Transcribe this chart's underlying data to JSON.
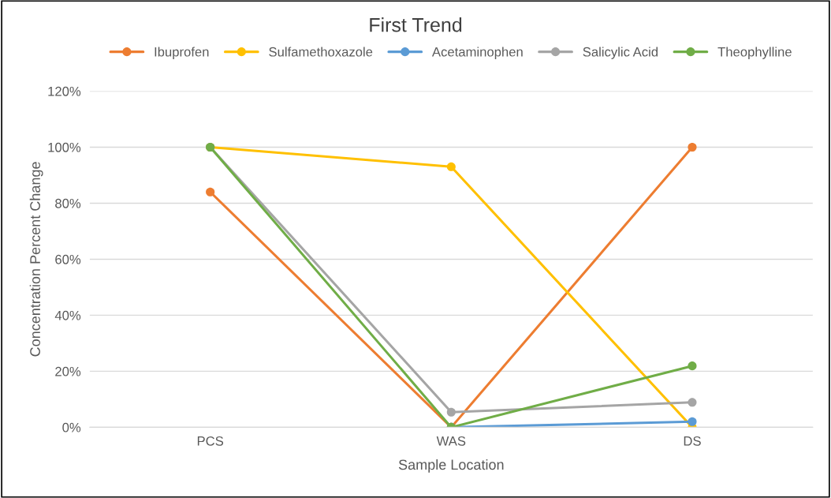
{
  "chart_data": {
    "type": "line",
    "title": "First Trend",
    "xlabel": "Sample Location",
    "ylabel": "Concentration Percent Change",
    "categories": [
      "PCS",
      "WAS",
      "DS"
    ],
    "series": [
      {
        "name": "Ibuprofen",
        "color": "#ed7d31",
        "values": [
          84,
          0,
          100
        ]
      },
      {
        "name": "Sulfamethoxazole",
        "color": "#ffc000",
        "values": [
          100,
          93,
          0
        ]
      },
      {
        "name": "Acetaminophen",
        "color": "#5b9bd5",
        "values": [
          null,
          0,
          2
        ]
      },
      {
        "name": "Salicylic Acid",
        "color": "#a5a5a5",
        "values": [
          100,
          5.4,
          8.9
        ]
      },
      {
        "name": "Theophylline",
        "color": "#70ad47",
        "values": [
          100,
          0,
          21.9
        ]
      }
    ],
    "ylim": [
      0,
      120
    ],
    "yticks": [
      {
        "value": 0,
        "label": "0%"
      },
      {
        "value": 20,
        "label": "20%"
      },
      {
        "value": 40,
        "label": "40%"
      },
      {
        "value": 60,
        "label": "60%"
      },
      {
        "value": 80,
        "label": "80%"
      },
      {
        "value": 100,
        "label": "100%"
      },
      {
        "value": 120,
        "label": "120%"
      }
    ],
    "grid": "y",
    "legend": "top",
    "marker": "circle",
    "line_style": "solid"
  }
}
